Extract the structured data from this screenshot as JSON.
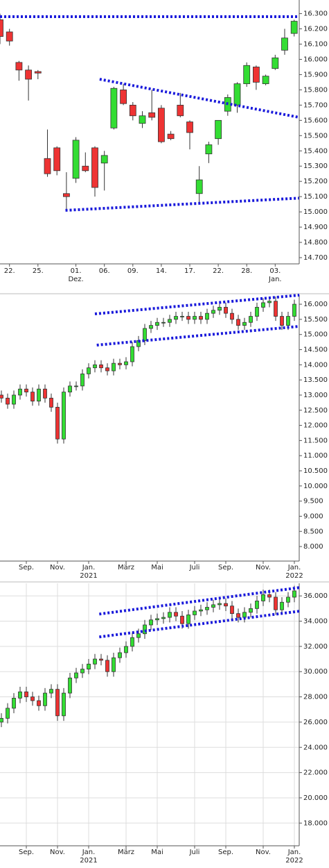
{
  "chart_data": [
    {
      "type": "candlestick",
      "up_color": "#33dd33",
      "down_color": "#ee3333",
      "trendline_color": "#1a1adb",
      "grid": false,
      "categories": [
        null,
        "22.",
        null,
        null,
        "25.",
        null,
        null,
        null,
        "01.",
        null,
        null,
        "06.",
        null,
        null,
        "09.",
        null,
        null,
        "14.",
        null,
        null,
        "17.",
        null,
        null,
        "22.",
        null,
        null,
        "28.",
        null,
        null,
        "03.",
        null,
        null
      ],
      "x_sublabels": [
        null,
        null,
        null,
        null,
        null,
        null,
        null,
        null,
        "Dez.",
        null,
        null,
        null,
        null,
        null,
        null,
        null,
        null,
        null,
        null,
        null,
        null,
        null,
        null,
        null,
        null,
        null,
        null,
        null,
        null,
        "Jan.",
        null,
        null
      ],
      "open": [
        16260,
        16180,
        15980,
        15930,
        15920,
        15350,
        15420,
        15120,
        15220,
        15300,
        15420,
        15320,
        15550,
        15800,
        15700,
        15580,
        15650,
        15680,
        15510,
        15700,
        15590,
        15120,
        15380,
        15480,
        15660,
        15700,
        15840,
        15950,
        15840,
        15940,
        16060,
        16170
      ],
      "high": [
        16300,
        16200,
        15990,
        15960,
        15930,
        15540,
        15430,
        15260,
        15490,
        15390,
        15430,
        15400,
        15820,
        15840,
        15720,
        15660,
        15800,
        15700,
        15530,
        15780,
        15600,
        15300,
        15460,
        15600,
        15770,
        15850,
        15980,
        15960,
        15900,
        16030,
        16200,
        16260
      ],
      "low": [
        16100,
        16090,
        15860,
        15730,
        15870,
        15230,
        15240,
        15010,
        15190,
        15260,
        15100,
        15140,
        15540,
        15700,
        15600,
        15550,
        15600,
        15450,
        15470,
        15620,
        15410,
        15050,
        15320,
        15440,
        15630,
        15650,
        15820,
        15800,
        15830,
        15930,
        16030,
        16150
      ],
      "close": [
        16150,
        16120,
        15930,
        15870,
        15910,
        15250,
        15270,
        15100,
        15470,
        15270,
        15160,
        15370,
        15810,
        15710,
        15630,
        15630,
        15620,
        15460,
        15480,
        15630,
        15520,
        15210,
        15440,
        15600,
        15750,
        15840,
        15960,
        15850,
        15890,
        16010,
        16140,
        16250
      ],
      "ylim": [
        14650,
        16330
      ],
      "yticks": [
        {
          "value": 14700,
          "label": "14.700"
        },
        {
          "value": 14800,
          "label": "14.800"
        },
        {
          "value": 14900,
          "label": "14.900"
        },
        {
          "value": 15000,
          "label": "15.000"
        },
        {
          "value": 15100,
          "label": "15.100"
        },
        {
          "value": 15200,
          "label": "15.200"
        },
        {
          "value": 15300,
          "label": "15.300"
        },
        {
          "value": 15400,
          "label": "15.400"
        },
        {
          "value": 15500,
          "label": "15.500"
        },
        {
          "value": 15600,
          "label": "15.600"
        },
        {
          "value": 15700,
          "label": "15.700"
        },
        {
          "value": 15800,
          "label": "15.800"
        },
        {
          "value": 15900,
          "label": "15.900"
        },
        {
          "value": 16000,
          "label": "16.000"
        },
        {
          "value": 16100,
          "label": "16.100"
        },
        {
          "value": 16200,
          "label": "16.200"
        },
        {
          "value": 16300,
          "label": "16.300"
        }
      ],
      "trendlines": [
        {
          "x": [
            0,
            31.5
          ],
          "y": [
            16280,
            16280
          ]
        },
        {
          "x": [
            6.9,
            31.5
          ],
          "y": [
            15010,
            15090
          ]
        },
        {
          "x": [
            10.5,
            31.5
          ],
          "y": [
            15870,
            15620
          ]
        }
      ]
    },
    {
      "type": "candlestick",
      "up_color": "#33dd33",
      "down_color": "#ee3333",
      "trendline_color": "#1a1adb",
      "grid": false,
      "categories": [
        null,
        null,
        null,
        null,
        "Sep.",
        null,
        null,
        null,
        null,
        "Nov.",
        null,
        null,
        null,
        null,
        "Jan.",
        null,
        null,
        null,
        null,
        null,
        "März",
        null,
        null,
        null,
        null,
        "Mai",
        null,
        null,
        null,
        null,
        null,
        "Juli",
        null,
        null,
        null,
        null,
        "Sep.",
        null,
        null,
        null,
        null,
        null,
        "Nov.",
        null,
        null,
        null,
        null,
        "Jan."
      ],
      "x_sublabels": [
        null,
        null,
        null,
        null,
        null,
        null,
        null,
        null,
        null,
        null,
        null,
        null,
        null,
        null,
        "2021",
        null,
        null,
        null,
        null,
        null,
        null,
        null,
        null,
        null,
        null,
        null,
        null,
        null,
        null,
        null,
        null,
        null,
        null,
        null,
        null,
        null,
        null,
        null,
        null,
        null,
        null,
        null,
        null,
        null,
        null,
        null,
        null,
        "2022"
      ],
      "open": [
        13000,
        12900,
        12700,
        13000,
        13200,
        13100,
        12800,
        13200,
        12900,
        12600,
        11550,
        13100,
        13300,
        13300,
        13700,
        13900,
        14000,
        13900,
        13800,
        14050,
        14000,
        14100,
        14600,
        14800,
        15200,
        15300,
        15400,
        15400,
        15500,
        15600,
        15600,
        15500,
        15600,
        15500,
        15700,
        15800,
        15900,
        15700,
        15500,
        15300,
        15400,
        15600,
        15900,
        16050,
        16100,
        15600,
        15300,
        15600
      ],
      "high": [
        13150,
        13050,
        13150,
        13350,
        13350,
        13250,
        13350,
        13350,
        13050,
        12750,
        13250,
        13450,
        13450,
        13850,
        14050,
        14150,
        14150,
        14050,
        14200,
        14200,
        14250,
        14750,
        14950,
        15350,
        15450,
        15550,
        15550,
        15650,
        15750,
        15750,
        15750,
        15750,
        15750,
        15850,
        15950,
        16050,
        16050,
        15850,
        15650,
        15550,
        15750,
        16050,
        16200,
        16250,
        16250,
        15750,
        15750,
        16150
      ],
      "low": [
        12750,
        12550,
        12550,
        12850,
        12950,
        12650,
        12650,
        12750,
        12450,
        11400,
        11400,
        12950,
        13150,
        13150,
        13550,
        13750,
        13750,
        13650,
        13650,
        13850,
        13850,
        13950,
        14450,
        14650,
        15050,
        15150,
        15250,
        15250,
        15350,
        15450,
        15350,
        15350,
        15350,
        15350,
        15550,
        15650,
        15550,
        15350,
        15150,
        15150,
        15250,
        15450,
        15750,
        15900,
        15450,
        15150,
        15150,
        15450
      ],
      "close": [
        12900,
        12700,
        13000,
        13200,
        13100,
        12800,
        13200,
        12900,
        12600,
        11550,
        13100,
        13300,
        13300,
        13700,
        13900,
        14000,
        13900,
        13800,
        14050,
        14000,
        14100,
        14600,
        14800,
        15200,
        15300,
        15400,
        15400,
        15500,
        15600,
        15600,
        15500,
        15600,
        15500,
        15700,
        15800,
        15900,
        15700,
        15500,
        15300,
        15400,
        15600,
        15900,
        16050,
        16100,
        15600,
        15300,
        15600,
        16000
      ],
      "ylim": [
        7520,
        16300
      ],
      "yticks": [
        {
          "value": 8000,
          "label": "8.000"
        },
        {
          "value": 8500,
          "label": "8.500"
        },
        {
          "value": 9000,
          "label": "9.000"
        },
        {
          "value": 9500,
          "label": "9.500"
        },
        {
          "value": 10000,
          "label": "10.000"
        },
        {
          "value": 10500,
          "label": "10.500"
        },
        {
          "value": 11000,
          "label": "11.000"
        },
        {
          "value": 11500,
          "label": "11.500"
        },
        {
          "value": 12000,
          "label": "12.000"
        },
        {
          "value": 12500,
          "label": "12.500"
        },
        {
          "value": 13000,
          "label": "13.000"
        },
        {
          "value": 13500,
          "label": "13.500"
        },
        {
          "value": 14000,
          "label": "14.000"
        },
        {
          "value": 14500,
          "label": "14.500"
        },
        {
          "value": 15000,
          "label": "15.000"
        },
        {
          "value": 15500,
          "label": "15.500"
        },
        {
          "value": 16000,
          "label": "16.000"
        }
      ],
      "trendlines": [
        {
          "x": [
            15,
            47.8
          ],
          "y": [
            15680,
            16300
          ]
        },
        {
          "x": [
            15.3,
            47.8
          ],
          "y": [
            14650,
            15270
          ]
        }
      ]
    },
    {
      "type": "candlestick",
      "up_color": "#33dd33",
      "down_color": "#ee3333",
      "trendline_color": "#1a1adb",
      "grid": true,
      "categories": [
        null,
        null,
        null,
        null,
        "Sep.",
        null,
        null,
        null,
        null,
        "Nov.",
        null,
        null,
        null,
        null,
        "Jan.",
        null,
        null,
        null,
        null,
        null,
        "März",
        null,
        null,
        null,
        null,
        "Mai",
        null,
        null,
        null,
        null,
        null,
        "Juli",
        null,
        null,
        null,
        null,
        "Sep.",
        null,
        null,
        null,
        null,
        null,
        "Nov.",
        null,
        null,
        null,
        null,
        "Jan."
      ],
      "x_sublabels": [
        null,
        null,
        null,
        null,
        null,
        null,
        null,
        null,
        null,
        null,
        null,
        null,
        null,
        null,
        "2021",
        null,
        null,
        null,
        null,
        null,
        null,
        null,
        null,
        null,
        null,
        null,
        null,
        null,
        null,
        null,
        null,
        null,
        null,
        null,
        null,
        null,
        null,
        null,
        null,
        null,
        null,
        null,
        null,
        null,
        null,
        null,
        null,
        "2022"
      ],
      "open": [
        26000,
        26300,
        27100,
        27900,
        28400,
        28000,
        27700,
        27300,
        28300,
        28600,
        26500,
        28300,
        29500,
        29900,
        30200,
        30600,
        31000,
        30900,
        30000,
        31100,
        31500,
        32000,
        32700,
        33000,
        33700,
        34100,
        34200,
        34300,
        34700,
        34400,
        33800,
        34500,
        34800,
        34900,
        35100,
        35300,
        35400,
        35200,
        34600,
        34300,
        34700,
        35000,
        35600,
        36100,
        35900,
        34900,
        35500,
        35900
      ],
      "high": [
        26700,
        27500,
        28300,
        28800,
        28800,
        28400,
        28100,
        28700,
        29000,
        29000,
        28700,
        29900,
        30300,
        30600,
        31000,
        31400,
        31400,
        31300,
        31500,
        31900,
        32400,
        33100,
        33400,
        34100,
        34500,
        34600,
        34700,
        35100,
        35100,
        34800,
        34900,
        35200,
        35300,
        35500,
        35700,
        35800,
        35800,
        35600,
        35000,
        35100,
        35400,
        36000,
        36500,
        36500,
        36300,
        35900,
        36300,
        36800
      ],
      "low": [
        25600,
        25900,
        26700,
        27500,
        27600,
        27300,
        26900,
        26900,
        27900,
        26100,
        26100,
        27900,
        29100,
        29500,
        29800,
        30200,
        30500,
        29600,
        29600,
        30700,
        31100,
        31600,
        32300,
        32600,
        33300,
        33700,
        33800,
        33900,
        34000,
        33400,
        33400,
        34100,
        34400,
        34500,
        34700,
        34900,
        34800,
        34200,
        33900,
        33900,
        34300,
        34600,
        35200,
        35500,
        34500,
        34500,
        35100,
        35500
      ],
      "close": [
        26300,
        27100,
        27900,
        28400,
        28000,
        27700,
        27300,
        28300,
        28600,
        26500,
        28300,
        29500,
        29900,
        30200,
        30600,
        31000,
        30900,
        30000,
        31100,
        31500,
        32000,
        32700,
        33000,
        33700,
        34100,
        34200,
        34300,
        34700,
        34400,
        33800,
        34500,
        34800,
        34900,
        35100,
        35300,
        35400,
        35200,
        34600,
        34300,
        34700,
        35000,
        35600,
        36100,
        35900,
        34900,
        35500,
        35900,
        36400
      ],
      "ylim": [
        16200,
        37000
      ],
      "yticks": [
        {
          "value": 18000,
          "label": "18.000"
        },
        {
          "value": 20000,
          "label": "20.000"
        },
        {
          "value": 22000,
          "label": "22.000"
        },
        {
          "value": 24000,
          "label": "24.000"
        },
        {
          "value": 26000,
          "label": "26.000"
        },
        {
          "value": 28000,
          "label": "28.000"
        },
        {
          "value": 30000,
          "label": "30.000"
        },
        {
          "value": 32000,
          "label": "32.000"
        },
        {
          "value": 34000,
          "label": "34.000"
        },
        {
          "value": 36000,
          "label": "36.000"
        }
      ],
      "trendlines": [
        {
          "x": [
            15.7,
            47.8
          ],
          "y": [
            34560,
            36660
          ]
        },
        {
          "x": [
            15.7,
            47.8
          ],
          "y": [
            32750,
            34790
          ]
        }
      ]
    }
  ]
}
